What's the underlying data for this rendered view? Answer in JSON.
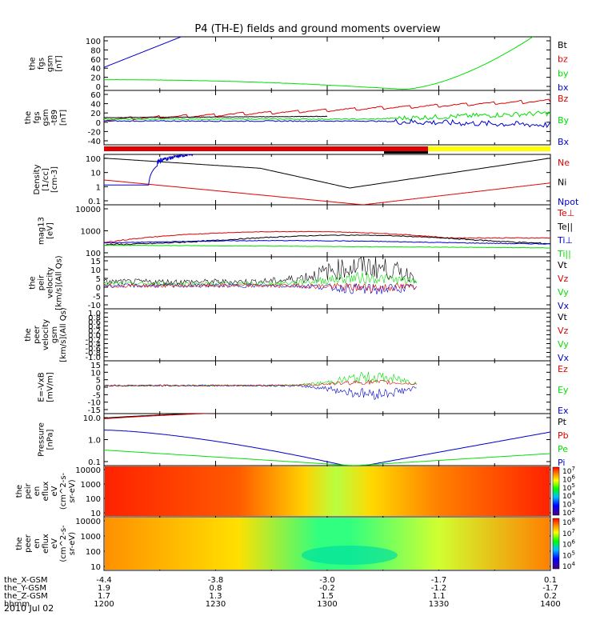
{
  "title": "P4 (TH-E) fields and ground moments overview",
  "date_label": "2010 Jul 02",
  "colors": {
    "red": "#e00000",
    "green": "#00e000",
    "blue": "#0000cc",
    "black": "#000000",
    "yellow": "#ffff00"
  },
  "panels": [
    {
      "id": "fgs-gsm",
      "ylabel": [
        "the",
        "fgs",
        "gsm",
        "[nT]"
      ],
      "ticks": [
        "100",
        "80",
        "60",
        "40",
        "20",
        "0"
      ],
      "legend": [
        {
          "t": "Bt",
          "c": "black"
        },
        {
          "t": "bz",
          "c": "red"
        },
        {
          "t": "by",
          "c": "green"
        },
        {
          "t": "bx",
          "c": "blue"
        }
      ]
    },
    {
      "id": "fgs-dsl",
      "ylabel": [
        "the",
        "fgs",
        "gsm",
        "-t89",
        "[nT]"
      ],
      "ticks": [
        "60",
        "40",
        "20",
        "0",
        "-20",
        "-40"
      ],
      "legend": [
        {
          "t": "Bz",
          "c": "red"
        },
        {
          "t": "By",
          "c": "green"
        },
        {
          "t": "Bx",
          "c": "blue"
        }
      ]
    },
    {
      "id": "density",
      "ylabel": [
        "Density",
        "[1/cc]",
        "[cm-3]"
      ],
      "ticks": [
        "100",
        "10",
        "1",
        "0.1"
      ],
      "legend": [
        {
          "t": "Ne",
          "c": "red"
        },
        {
          "t": "Ni",
          "c": "black"
        },
        {
          "t": "Npot",
          "c": "blue"
        }
      ]
    },
    {
      "id": "temperature",
      "ylabel": [
        "mag13",
        "[eV]"
      ],
      "ticks": [
        "10000",
        "1000",
        "100"
      ],
      "legend": [
        {
          "t": "Te⊥",
          "c": "red"
        },
        {
          "t": "Te||",
          "c": "black"
        },
        {
          "t": "Ti⊥",
          "c": "blue"
        },
        {
          "t": "Ti||",
          "c": "green"
        }
      ]
    },
    {
      "id": "peir-velocity",
      "ylabel": [
        "the",
        "peir",
        "velocity",
        "[km/s](All Qs)"
      ],
      "ticks": [
        "15",
        "10",
        "5",
        "0",
        "-5",
        "-10"
      ],
      "legend": [
        {
          "t": "Vt",
          "c": "black"
        },
        {
          "t": "Vz",
          "c": "red"
        },
        {
          "t": "Vy",
          "c": "green"
        },
        {
          "t": "Vx",
          "c": "blue"
        }
      ]
    },
    {
      "id": "peer-velocity",
      "ylabel": [
        "the",
        "peer",
        "velocity",
        "gsm",
        "[km/s](All Qs)"
      ],
      "ticks": [
        "1.0",
        "0.8",
        "0.6",
        "0.4",
        "0.2",
        "0.0",
        "-0.2",
        "-0.4",
        "-0.6",
        "-0.8",
        "-1.0"
      ],
      "legend": [
        {
          "t": "Vt",
          "c": "black"
        },
        {
          "t": "Vz",
          "c": "red"
        },
        {
          "t": "Vy",
          "c": "green"
        },
        {
          "t": "Vx",
          "c": "blue"
        }
      ]
    },
    {
      "id": "efield",
      "ylabel": [
        "E=-VxB",
        "[mV/m]"
      ],
      "ticks": [
        "15",
        "10",
        "5",
        "0",
        "-5",
        "-10",
        "-15"
      ],
      "legend": [
        {
          "t": "Ez",
          "c": "red"
        },
        {
          "t": "Ey",
          "c": "green"
        },
        {
          "t": "Ex",
          "c": "blue"
        }
      ]
    },
    {
      "id": "pressure",
      "ylabel": [
        "Pressure",
        "[nPa]"
      ],
      "ticks": [
        "10.0",
        "1.0",
        "0.1"
      ],
      "legend": [
        {
          "t": "Pt",
          "c": "black"
        },
        {
          "t": "Pb",
          "c": "red"
        },
        {
          "t": "Pe",
          "c": "green"
        },
        {
          "t": "Pi",
          "c": "blue"
        }
      ]
    },
    {
      "id": "peir-eflux",
      "ylabel": [
        "the",
        "peir",
        "en",
        "eflux",
        "eV",
        "(cm^2-s-",
        "sr-eV)"
      ],
      "ticks": [
        "10000",
        "1000",
        "100",
        "10"
      ],
      "colorbar": [
        "10^7",
        "10^6",
        "10^5",
        "10^4",
        "10^3",
        "10^2"
      ]
    },
    {
      "id": "peer-eflux",
      "ylabel": [
        "the",
        "peer",
        "en",
        "eflux",
        "eV",
        "(cm^2-s-",
        "sr-eV)"
      ],
      "ticks": [
        "10000",
        "1000",
        "100",
        "10"
      ],
      "colorbar": [
        "10^8",
        "10^7",
        "10^6",
        "10^5",
        "10^4"
      ]
    }
  ],
  "x_axis": {
    "rows": [
      {
        "label": "the_X-GSM",
        "values": [
          "-4.4",
          "-3.8",
          "-3.0",
          "-1.7",
          "0.1"
        ]
      },
      {
        "label": "the_Y-GSM",
        "values": [
          "1.9",
          "0.8",
          "-0.2",
          "-1.2",
          "-1.7"
        ]
      },
      {
        "label": "the_Z-GSM",
        "values": [
          "1.7",
          "1.3",
          "1.5",
          "1.1",
          "0.2"
        ]
      },
      {
        "label": "hhmm",
        "values": [
          "1200",
          "1230",
          "1300",
          "1330",
          "1400"
        ]
      }
    ]
  },
  "chart_data": {
    "type": "line",
    "title": "P4 (TH-E) fields and ground moments overview",
    "x": [
      "1200",
      "1230",
      "1300",
      "1330",
      "1400"
    ],
    "series": [
      {
        "name": "bx",
        "panel": "fgs-gsm",
        "values": [
          43,
          90,
          100,
          100,
          100
        ]
      },
      {
        "name": "by",
        "panel": "fgs-gsm",
        "values": [
          20,
          18,
          5,
          2,
          100
        ]
      },
      {
        "name": "Bz",
        "panel": "fgs-dsl",
        "values": [
          0,
          12,
          30,
          40,
          30
        ]
      },
      {
        "name": "Ni",
        "panel": "density",
        "values": [
          60,
          15,
          1,
          10,
          60
        ]
      },
      {
        "name": "Ne",
        "panel": "density",
        "values": [
          3,
          0.6,
          0.1,
          0.6,
          2
        ]
      },
      {
        "name": "Te⊥",
        "panel": "temperature",
        "values": [
          300,
          650,
          900,
          550,
          300
        ]
      },
      {
        "name": "Pi",
        "panel": "pressure",
        "values": [
          3,
          1.5,
          0.04,
          0.6,
          2.5
        ]
      },
      {
        "name": "Pe",
        "panel": "pressure",
        "values": [
          0.3,
          0.1,
          0.03,
          0.1,
          0.2
        ]
      }
    ],
    "ylim": {
      "fgs-gsm": [
        0,
        100
      ],
      "fgs-dsl": [
        -50,
        60
      ],
      "density": [
        0.1,
        100
      ],
      "temperature": [
        100,
        10000
      ],
      "peir-velocity": [
        -12,
        15
      ],
      "peer-velocity": [
        -1,
        1
      ],
      "efield": [
        -17,
        15
      ],
      "pressure": [
        0.05,
        20
      ]
    }
  }
}
